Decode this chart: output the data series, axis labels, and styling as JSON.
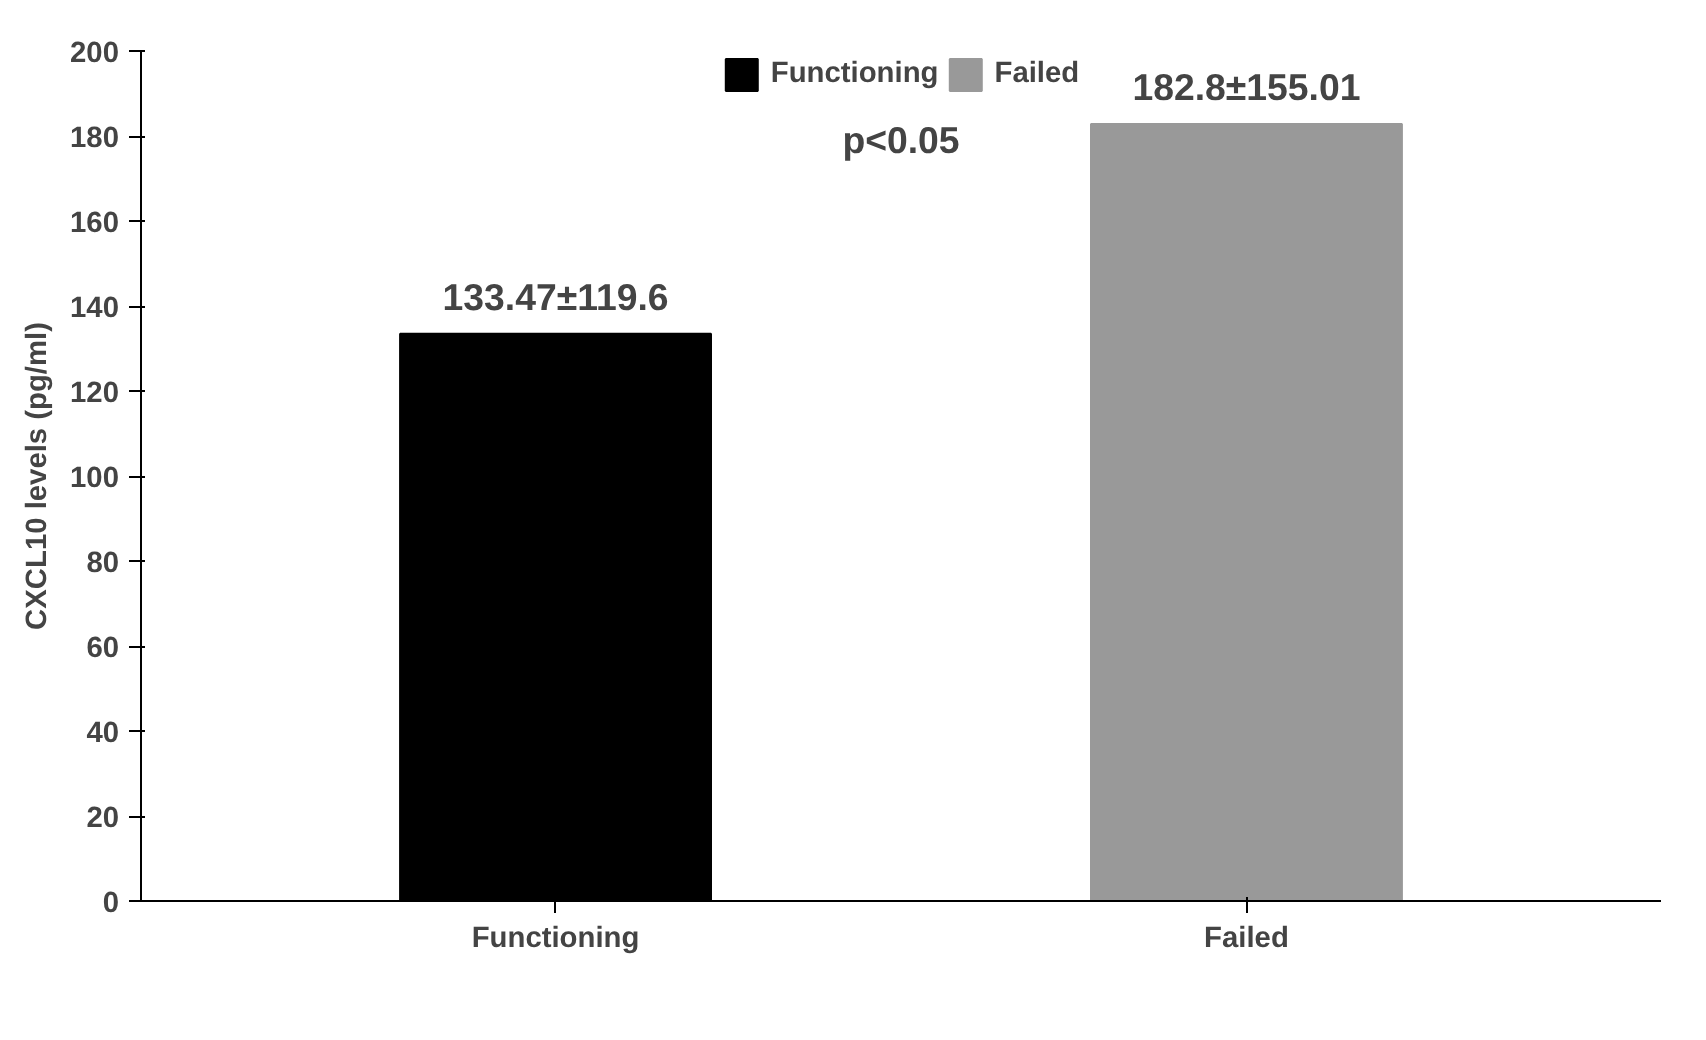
{
  "chart_data": {
    "type": "bar",
    "categories": [
      "Functioning",
      "Failed"
    ],
    "series": [
      {
        "name": "Functioning",
        "color": "#000000",
        "values": [
          133.47,
          null
        ],
        "value_labels": [
          "133.47±119.6",
          null
        ]
      },
      {
        "name": "Failed",
        "color": "#999999",
        "values": [
          null,
          182.8
        ],
        "value_labels": [
          null,
          "182.8±155.01"
        ]
      }
    ],
    "ylabel": "CXCL10 levels (pg/ml)",
    "ylim": [
      0,
      200
    ],
    "yticks": [
      0,
      20,
      40,
      60,
      80,
      100,
      120,
      140,
      160,
      180,
      200
    ],
    "annotations": [
      "p<0.05"
    ],
    "legend": "top",
    "grid": false
  }
}
